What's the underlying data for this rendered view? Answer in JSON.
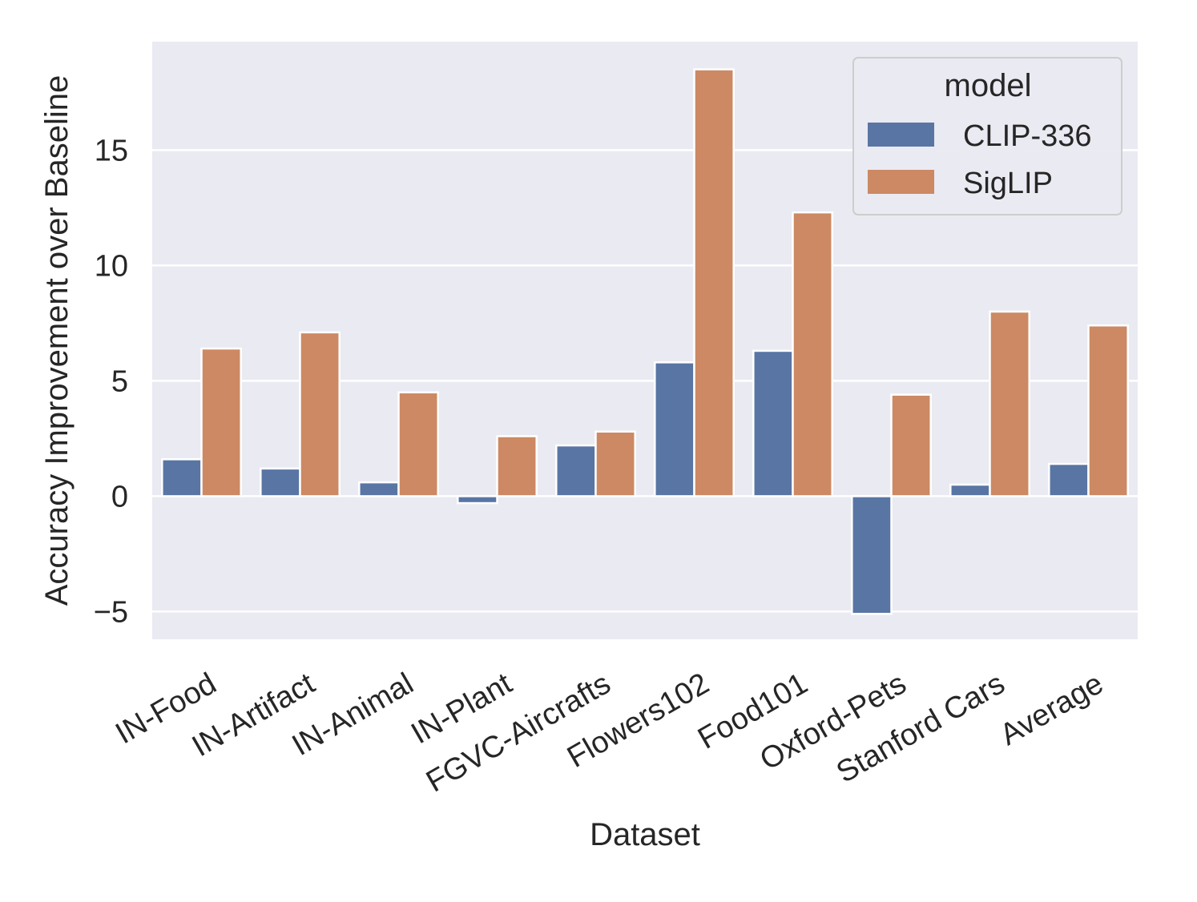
{
  "chart_data": {
    "type": "bar",
    "title": "",
    "xlabel": "Dataset",
    "ylabel": "Accuracy Improvement over Baseline",
    "categories": [
      "IN-Food",
      "IN-Artifact",
      "IN-Animal",
      "IN-Plant",
      "FGVC-Aircrafts",
      "Flowers102",
      "Food101",
      "Oxford-Pets",
      "Stanford Cars",
      "Average"
    ],
    "series": [
      {
        "name": "CLIP-336",
        "color": "#5975a4",
        "values": [
          1.6,
          1.2,
          0.6,
          -0.3,
          2.2,
          5.8,
          6.3,
          -5.1,
          0.5,
          1.4
        ]
      },
      {
        "name": "SigLIP",
        "color": "#cc8963",
        "values": [
          6.4,
          7.1,
          4.5,
          2.6,
          2.8,
          18.5,
          12.3,
          4.4,
          8.0,
          7.4
        ]
      }
    ],
    "ylim": [
      -6.2,
      19.7
    ],
    "yticks": [
      -5,
      0,
      5,
      10,
      15
    ],
    "ytick_labels": [
      "−5",
      "0",
      "5",
      "10",
      "15"
    ],
    "grid": true,
    "background": "#eaeaf2",
    "legend": {
      "title": "model",
      "position": "top-right"
    }
  }
}
